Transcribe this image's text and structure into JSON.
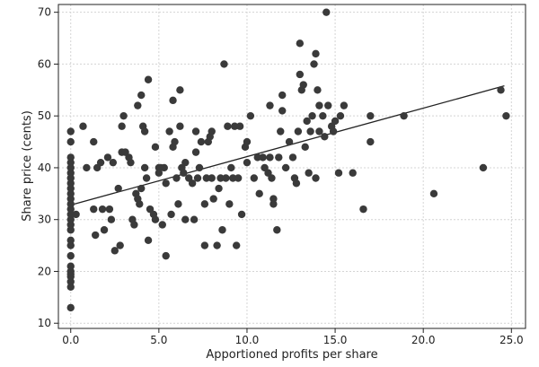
{
  "chart_data": {
    "type": "scatter",
    "title": "",
    "xlabel": "Apportioned profits per share",
    "ylabel": "Share price (cents)",
    "xlim": [
      -0.7,
      25.8
    ],
    "ylim": [
      9,
      71.5
    ],
    "xticks": [
      0,
      5,
      10,
      15,
      20,
      25
    ],
    "xtick_labels": [
      "0.0",
      "5.0",
      "10.0",
      "15.0",
      "20.0",
      "25.0"
    ],
    "yticks": [
      10,
      20,
      30,
      40,
      50,
      60,
      70
    ],
    "ytick_labels": [
      "10",
      "20",
      "30",
      "40",
      "50",
      "60",
      "70"
    ],
    "grid": true,
    "marker_color": "#3a3a3a",
    "trend_line_color": "#222222",
    "trend_line": {
      "x": [
        0,
        24.6
      ],
      "y": [
        32.8,
        55.8
      ]
    },
    "points": [
      [
        0,
        13
      ],
      [
        0,
        17
      ],
      [
        0,
        18
      ],
      [
        0,
        19
      ],
      [
        0,
        19.5
      ],
      [
        0,
        20
      ],
      [
        0,
        21
      ],
      [
        0,
        23
      ],
      [
        0,
        25
      ],
      [
        0,
        26
      ],
      [
        0,
        28
      ],
      [
        0,
        29
      ],
      [
        0,
        30
      ],
      [
        0,
        31
      ],
      [
        0,
        32
      ],
      [
        0,
        33
      ],
      [
        0,
        34
      ],
      [
        0,
        35
      ],
      [
        0,
        36
      ],
      [
        0,
        37
      ],
      [
        0,
        38
      ],
      [
        0,
        39
      ],
      [
        0,
        40
      ],
      [
        0,
        41
      ],
      [
        0,
        42
      ],
      [
        0,
        45
      ],
      [
        0,
        47
      ],
      [
        0.3,
        31
      ],
      [
        0.7,
        48
      ],
      [
        0.9,
        40
      ],
      [
        1.3,
        45
      ],
      [
        1.3,
        32
      ],
      [
        1.4,
        27
      ],
      [
        1.5,
        40
      ],
      [
        1.7,
        41
      ],
      [
        1.8,
        32
      ],
      [
        1.9,
        28
      ],
      [
        2.1,
        42
      ],
      [
        2.2,
        32
      ],
      [
        2.3,
        30
      ],
      [
        2.4,
        41
      ],
      [
        2.5,
        24
      ],
      [
        2.7,
        36
      ],
      [
        2.8,
        25
      ],
      [
        2.9,
        43
      ],
      [
        2.9,
        48
      ],
      [
        3.0,
        50
      ],
      [
        3.1,
        43
      ],
      [
        3.3,
        42
      ],
      [
        3.4,
        41
      ],
      [
        3.5,
        30
      ],
      [
        3.6,
        29
      ],
      [
        3.7,
        35
      ],
      [
        3.8,
        34
      ],
      [
        3.8,
        52
      ],
      [
        3.9,
        33
      ],
      [
        4.0,
        36
      ],
      [
        4.0,
        54
      ],
      [
        4.1,
        48
      ],
      [
        4.2,
        47
      ],
      [
        4.2,
        40
      ],
      [
        4.3,
        38
      ],
      [
        4.4,
        26
      ],
      [
        4.4,
        57
      ],
      [
        4.5,
        32
      ],
      [
        4.7,
        31
      ],
      [
        4.8,
        30
      ],
      [
        4.8,
        44
      ],
      [
        5.0,
        40
      ],
      [
        5.0,
        39
      ],
      [
        5.1,
        40
      ],
      [
        5.2,
        29
      ],
      [
        5.3,
        40
      ],
      [
        5.4,
        37
      ],
      [
        5.4,
        23
      ],
      [
        5.6,
        47
      ],
      [
        5.7,
        31
      ],
      [
        5.8,
        53
      ],
      [
        5.8,
        44
      ],
      [
        5.9,
        45
      ],
      [
        6.0,
        38
      ],
      [
        6.1,
        33
      ],
      [
        6.2,
        48
      ],
      [
        6.2,
        55
      ],
      [
        6.3,
        40
      ],
      [
        6.4,
        39
      ],
      [
        6.5,
        41
      ],
      [
        6.5,
        30
      ],
      [
        6.7,
        38
      ],
      [
        6.9,
        37
      ],
      [
        7.0,
        30
      ],
      [
        7.1,
        43
      ],
      [
        7.1,
        47
      ],
      [
        7.2,
        38
      ],
      [
        7.3,
        40
      ],
      [
        7.4,
        45
      ],
      [
        7.6,
        25
      ],
      [
        7.6,
        33
      ],
      [
        7.7,
        38
      ],
      [
        7.8,
        45
      ],
      [
        7.9,
        46
      ],
      [
        8.0,
        47
      ],
      [
        8.0,
        38
      ],
      [
        8.1,
        34
      ],
      [
        8.3,
        25
      ],
      [
        8.4,
        36
      ],
      [
        8.5,
        38
      ],
      [
        8.6,
        28
      ],
      [
        8.7,
        60
      ],
      [
        8.8,
        38
      ],
      [
        8.9,
        48
      ],
      [
        9.0,
        33
      ],
      [
        9.1,
        40
      ],
      [
        9.2,
        38
      ],
      [
        9.3,
        48
      ],
      [
        9.4,
        25
      ],
      [
        9.5,
        38
      ],
      [
        9.6,
        48
      ],
      [
        9.7,
        31
      ],
      [
        9.9,
        44
      ],
      [
        10.0,
        45
      ],
      [
        10.0,
        41
      ],
      [
        10.2,
        50
      ],
      [
        10.4,
        38
      ],
      [
        10.6,
        42
      ],
      [
        10.7,
        35
      ],
      [
        10.9,
        42
      ],
      [
        11.0,
        40
      ],
      [
        11.2,
        39
      ],
      [
        11.3,
        52
      ],
      [
        11.3,
        42
      ],
      [
        11.4,
        38
      ],
      [
        11.5,
        33
      ],
      [
        11.5,
        34
      ],
      [
        11.7,
        28
      ],
      [
        11.8,
        42
      ],
      [
        11.9,
        47
      ],
      [
        12.0,
        51
      ],
      [
        12.0,
        54
      ],
      [
        12.2,
        40
      ],
      [
        12.4,
        45
      ],
      [
        12.6,
        42
      ],
      [
        12.7,
        38
      ],
      [
        12.8,
        37
      ],
      [
        12.9,
        47
      ],
      [
        13.0,
        58
      ],
      [
        13.0,
        64
      ],
      [
        13.1,
        55
      ],
      [
        13.2,
        56
      ],
      [
        13.3,
        44
      ],
      [
        13.4,
        49
      ],
      [
        13.5,
        39
      ],
      [
        13.6,
        47
      ],
      [
        13.7,
        50
      ],
      [
        13.8,
        60
      ],
      [
        13.9,
        62
      ],
      [
        13.9,
        38
      ],
      [
        14.0,
        55
      ],
      [
        14.1,
        47
      ],
      [
        14.1,
        52
      ],
      [
        14.3,
        50
      ],
      [
        14.4,
        46
      ],
      [
        14.5,
        70
      ],
      [
        14.6,
        52
      ],
      [
        14.8,
        48
      ],
      [
        14.9,
        47
      ],
      [
        15.0,
        49
      ],
      [
        15.2,
        39
      ],
      [
        15.3,
        50
      ],
      [
        15.5,
        52
      ],
      [
        16.0,
        39
      ],
      [
        16.6,
        32
      ],
      [
        17.0,
        45
      ],
      [
        17.0,
        50
      ],
      [
        18.9,
        50
      ],
      [
        20.6,
        35
      ],
      [
        23.4,
        40
      ],
      [
        24.4,
        55
      ],
      [
        24.7,
        50
      ]
    ]
  }
}
